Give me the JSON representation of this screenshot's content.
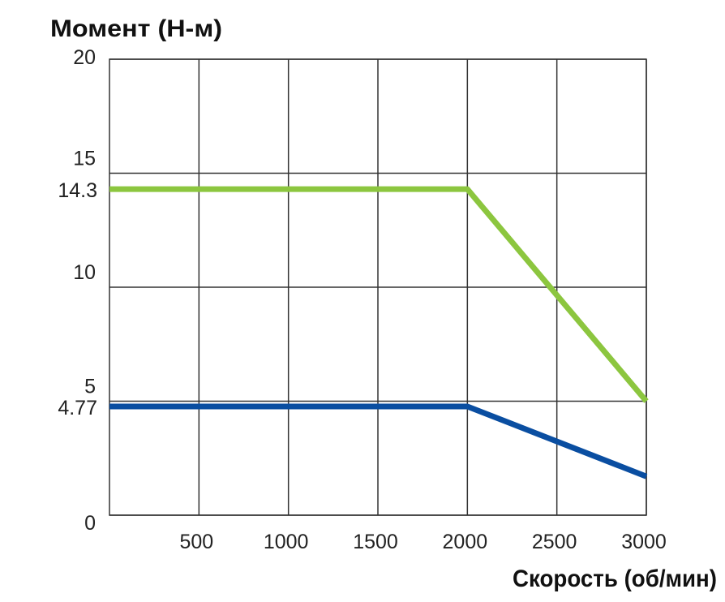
{
  "chart_data": {
    "type": "line",
    "ylabel": "Момент (Н-м)",
    "xlabel": "Скорость (об/мин)",
    "xlim": [
      0,
      3000
    ],
    "ylim": [
      0,
      20
    ],
    "x_ticks": [
      500,
      1000,
      1500,
      2000,
      2500,
      3000
    ],
    "y_ticks": [
      0,
      5,
      10,
      15,
      20
    ],
    "y_extra_labels": [
      "14.3",
      "4.77"
    ],
    "grid": true,
    "series": [
      {
        "color": "#8cc63f",
        "x": [
          0,
          2000,
          3000
        ],
        "y": [
          14.3,
          14.3,
          5.0
        ]
      },
      {
        "color": "#0a4ea1",
        "x": [
          0,
          2000,
          3000
        ],
        "y": [
          4.77,
          4.77,
          1.7
        ]
      }
    ]
  }
}
